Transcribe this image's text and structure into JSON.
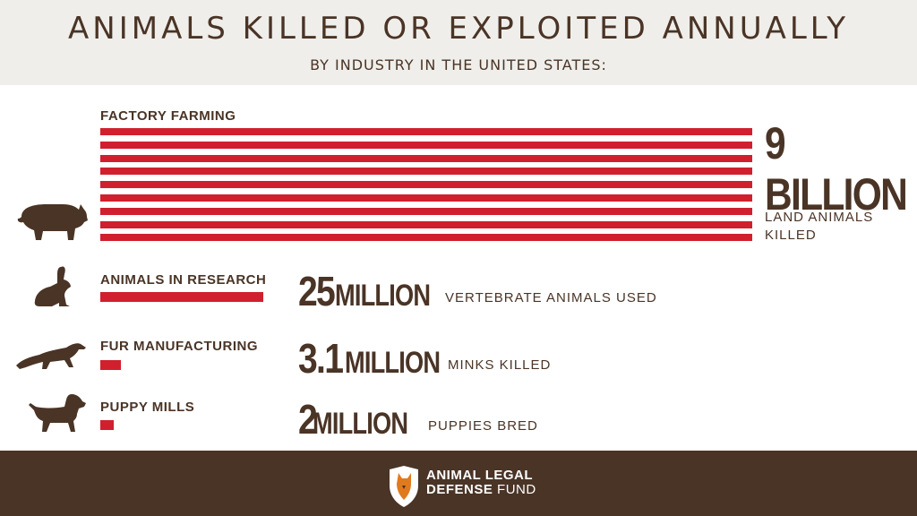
{
  "header": {
    "title": "ANIMALS KILLED OR EXPLOITED ANNUALLY",
    "subtitle": "BY INDUSTRY IN THE UNITED STATES:"
  },
  "colors": {
    "bar": "#d0202e",
    "brown": "#4a3426",
    "header_bg": "#efeeea"
  },
  "chart_data": {
    "type": "bar",
    "orientation": "horizontal",
    "title": "ANIMALS KILLED OR EXPLOITED ANNUALLY",
    "subtitle": "BY INDUSTRY IN THE UNITED STATES:",
    "categories": [
      "FACTORY FARMING",
      "ANIMALS IN RESEARCH",
      "FUR MANUFACTURING",
      "PUPPY MILLS"
    ],
    "values": [
      9000000000,
      25000000,
      3100000,
      2000000
    ],
    "value_labels": [
      {
        "number": "9",
        "unit": "BILLION",
        "description": "LAND ANIMALS KILLED"
      },
      {
        "number": "25",
        "unit": "MILLION",
        "description": "VERTEBRATE ANIMALS USED"
      },
      {
        "number": "3.1",
        "unit": "MILLION",
        "description": "MINKS KILLED"
      },
      {
        "number": "2",
        "unit": "MILLION",
        "description": "PUPPIES BRED"
      }
    ],
    "icons": [
      "pig-icon",
      "rabbit-icon",
      "mink-icon",
      "dog-icon"
    ]
  },
  "footer": {
    "logo_line1": "ANIMAL LEGAL",
    "logo_line2_bold": "DEFENSE",
    "logo_line2_regular": "FUND"
  }
}
